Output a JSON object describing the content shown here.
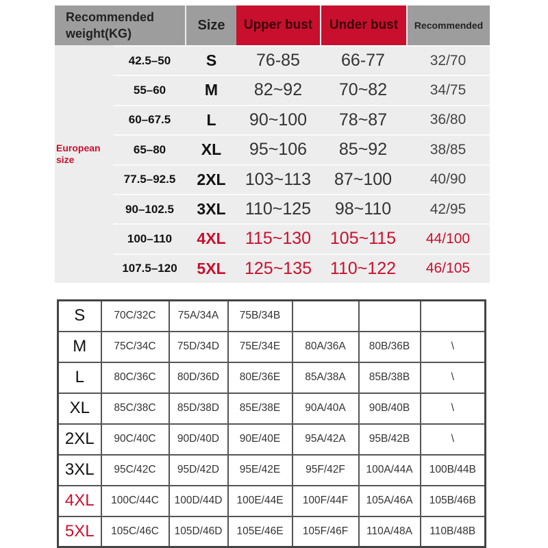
{
  "top_table": {
    "headers": {
      "weight": "Recommended weight(KG)",
      "size": "Size",
      "upper": "Upper bust",
      "under": "Under bust",
      "recommended": "Recommended"
    },
    "group_label": "European size",
    "colors": {
      "header_grey": "#9d9d9d",
      "header_red": "#c8102e",
      "highlight": "#c8102e"
    },
    "rows": [
      {
        "weight": "42.5–50",
        "size": "S",
        "upper": "76-85",
        "under": "66-77",
        "rec": "32/70"
      },
      {
        "weight": "55–60",
        "size": "M",
        "upper": "82~92",
        "under": "70~82",
        "rec": "34/75"
      },
      {
        "weight": "60–67.5",
        "size": "L",
        "upper": "90~100",
        "under": "78~87",
        "rec": "36/80"
      },
      {
        "weight": "65–80",
        "size": "XL",
        "upper": "95~106",
        "under": "85~92",
        "rec": "38/85"
      },
      {
        "weight": "77.5–92.5",
        "size": "2XL",
        "upper": "103~113",
        "under": "87~100",
        "rec": "40/90"
      },
      {
        "weight": "90–102.5",
        "size": "3XL",
        "upper": "110~125",
        "under": "98~110",
        "rec": "42/95"
      },
      {
        "weight": "100–110",
        "size": "4XL",
        "upper": "115~130",
        "under": "105~115",
        "rec": "44/100"
      },
      {
        "weight": "107.5–120",
        "size": "5XL",
        "upper": "125~135",
        "under": "110~122",
        "rec": "46/105"
      }
    ]
  },
  "bottom_table": {
    "rows": [
      {
        "size": "S",
        "cells": [
          "70C/32C",
          "75A/34A",
          "75B/34B",
          "",
          "",
          ""
        ]
      },
      {
        "size": "M",
        "cells": [
          "75C/34C",
          "75D/34D",
          "75E/34E",
          "80A/36A",
          "80B/36B",
          "\\"
        ]
      },
      {
        "size": "L",
        "cells": [
          "80C/36C",
          "80D/36D",
          "80E/36E",
          "85A/38A",
          "85B/38B",
          "\\"
        ]
      },
      {
        "size": "XL",
        "cells": [
          "85C/38C",
          "85D/38D",
          "85E/38E",
          "90A/40A",
          "90B/40B",
          "\\"
        ]
      },
      {
        "size": "2XL",
        "cells": [
          "90C/40C",
          "90D/40D",
          "90E/40E",
          "95A/42A",
          "95B/42B",
          "\\"
        ]
      },
      {
        "size": "3XL",
        "cells": [
          "95C/42C",
          "95D/42D",
          "95E/42E",
          "95F/42F",
          "100A/44A",
          "100B/44B"
        ]
      },
      {
        "size": "4XL",
        "cells": [
          "100C/44C",
          "100D/44D",
          "100E/44E",
          "100F/44F",
          "105A/46A",
          "105B/46B"
        ]
      },
      {
        "size": "5XL",
        "cells": [
          "105C/46C",
          "105D/46D",
          "105E/46E",
          "105F/46F",
          "110A/48A",
          "110B/48B"
        ]
      }
    ]
  }
}
